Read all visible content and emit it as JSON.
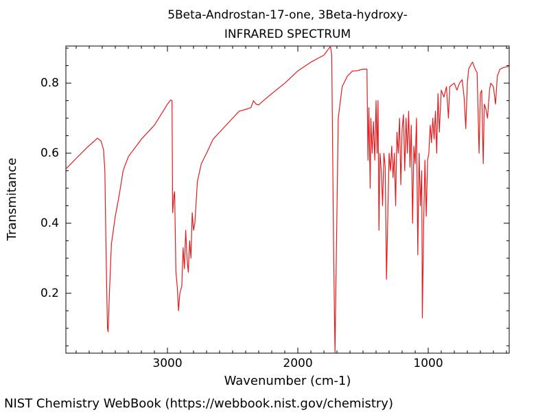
{
  "chart_data": {
    "type": "line",
    "title": "5Beta-Androstan-17-one, 3Beta-hydroxy-",
    "subtitle": "INFRARED SPECTRUM",
    "x_label": "Wavenumber (cm-1)",
    "y_label": "Transmitance",
    "xlim": [
      3779,
      379
    ],
    "ylim": [
      0.029,
      0.906
    ],
    "xticks": [
      3000,
      2000,
      1000
    ],
    "yticks": [
      0.2,
      0.4,
      0.6,
      0.8
    ],
    "xminorticks": [
      3700,
      3600,
      3500,
      3400,
      3300,
      3200,
      3100,
      2900,
      2800,
      2700,
      2600,
      2500,
      2400,
      2300,
      2200,
      2100,
      1900,
      1800,
      1700,
      1600,
      1500,
      1400,
      1300,
      1200,
      1100,
      900,
      800,
      700,
      600,
      500,
      400
    ],
    "yminorticks": [
      0.05,
      0.1,
      0.15,
      0.25,
      0.3,
      0.35,
      0.45,
      0.5,
      0.55,
      0.65,
      0.7,
      0.75,
      0.85,
      0.9
    ],
    "x": [
      3779,
      3700,
      3620,
      3560,
      3537,
      3510,
      3490,
      3480,
      3470,
      3460,
      3455,
      3445,
      3430,
      3400,
      3370,
      3340,
      3300,
      3200,
      3100,
      3050,
      3000,
      2975,
      2965,
      2960,
      2950,
      2945,
      2935,
      2925,
      2915,
      2905,
      2890,
      2880,
      2870,
      2860,
      2850,
      2840,
      2830,
      2820,
      2810,
      2800,
      2790,
      2770,
      2740,
      2700,
      2650,
      2600,
      2500,
      2450,
      2400,
      2360,
      2340,
      2320,
      2300,
      2280,
      2200,
      2100,
      2000,
      1900,
      1800,
      1760,
      1750,
      1740,
      1725,
      1715,
      1705,
      1690,
      1660,
      1620,
      1580,
      1550,
      1500,
      1470,
      1462,
      1455,
      1445,
      1440,
      1430,
      1420,
      1410,
      1400,
      1392,
      1385,
      1378,
      1370,
      1360,
      1350,
      1340,
      1330,
      1320,
      1310,
      1300,
      1290,
      1280,
      1270,
      1260,
      1250,
      1240,
      1230,
      1220,
      1210,
      1200,
      1190,
      1180,
      1170,
      1160,
      1150,
      1140,
      1130,
      1120,
      1110,
      1100,
      1090,
      1080,
      1070,
      1060,
      1050,
      1045,
      1035,
      1025,
      1015,
      1005,
      995,
      985,
      975,
      965,
      955,
      945,
      935,
      925,
      915,
      900,
      880,
      860,
      845,
      835,
      800,
      780,
      760,
      740,
      725,
      712,
      700,
      690,
      670,
      660,
      650,
      640,
      625,
      610,
      600,
      590,
      578,
      570,
      560,
      545,
      530,
      520,
      500,
      484,
      470,
      450,
      420,
      379
    ],
    "series": [
      {
        "name": "Transmitance",
        "color": "#e31a1c",
        "values": [
          0.555,
          0.585,
          0.615,
          0.635,
          0.643,
          0.635,
          0.61,
          0.55,
          0.3,
          0.1,
          0.09,
          0.2,
          0.34,
          0.42,
          0.48,
          0.55,
          0.59,
          0.64,
          0.68,
          0.71,
          0.74,
          0.752,
          0.75,
          0.43,
          0.48,
          0.49,
          0.26,
          0.22,
          0.15,
          0.2,
          0.22,
          0.33,
          0.27,
          0.38,
          0.3,
          0.26,
          0.35,
          0.3,
          0.43,
          0.38,
          0.4,
          0.52,
          0.57,
          0.6,
          0.64,
          0.66,
          0.7,
          0.72,
          0.725,
          0.73,
          0.75,
          0.74,
          0.738,
          0.745,
          0.77,
          0.8,
          0.835,
          0.86,
          0.88,
          0.9,
          0.905,
          0.88,
          0.3,
          0.03,
          0.3,
          0.7,
          0.79,
          0.82,
          0.835,
          0.835,
          0.84,
          0.84,
          0.58,
          0.73,
          0.5,
          0.7,
          0.6,
          0.69,
          0.58,
          0.75,
          0.6,
          0.75,
          0.38,
          0.6,
          0.55,
          0.45,
          0.6,
          0.56,
          0.24,
          0.42,
          0.6,
          0.55,
          0.62,
          0.53,
          0.6,
          0.45,
          0.66,
          0.6,
          0.7,
          0.51,
          0.67,
          0.71,
          0.55,
          0.7,
          0.6,
          0.72,
          0.56,
          0.68,
          0.4,
          0.62,
          0.57,
          0.7,
          0.31,
          0.6,
          0.45,
          0.55,
          0.13,
          0.4,
          0.58,
          0.42,
          0.58,
          0.6,
          0.68,
          0.63,
          0.7,
          0.64,
          0.72,
          0.6,
          0.77,
          0.66,
          0.78,
          0.76,
          0.79,
          0.7,
          0.79,
          0.8,
          0.78,
          0.8,
          0.81,
          0.76,
          0.67,
          0.8,
          0.84,
          0.855,
          0.86,
          0.85,
          0.84,
          0.83,
          0.6,
          0.77,
          0.78,
          0.57,
          0.74,
          0.73,
          0.7,
          0.78,
          0.8,
          0.79,
          0.74,
          0.82,
          0.84,
          0.845,
          0.848
        ]
      }
    ]
  },
  "footer": "NIST Chemistry WebBook (https://webbook.nist.gov/chemistry)"
}
